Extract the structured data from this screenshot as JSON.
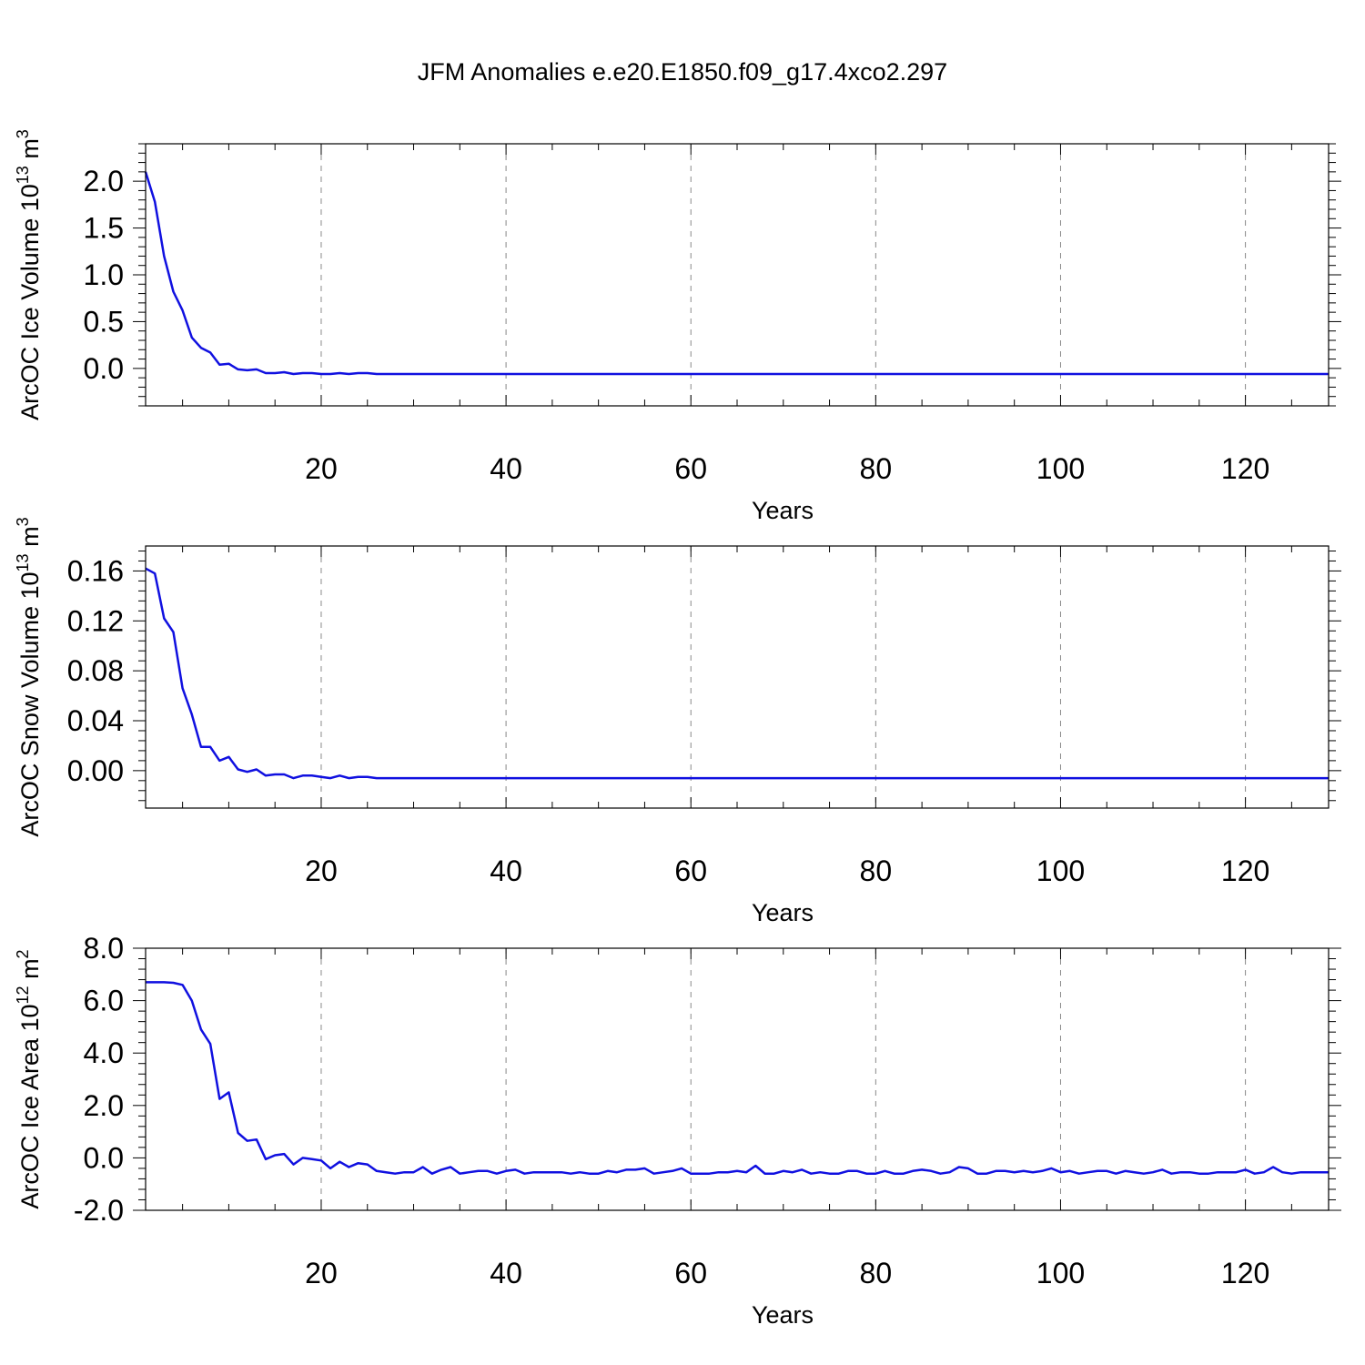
{
  "title": "JFM Anomalies e.e20.E1850.f09_g17.4xco2.297",
  "chart_data": [
    {
      "type": "line",
      "ylabel": "ArcOC Ice Volume 10",
      "ylabel_sup": "13",
      "ylabel_unit": "m",
      "ylabel_unit_sup": "3",
      "xlabel": "Years",
      "xlim": [
        1,
        129
      ],
      "ylim": [
        -0.4,
        2.4
      ],
      "xticks": [
        20,
        40,
        60,
        80,
        100,
        120
      ],
      "xtick_labels": [
        "20",
        "40",
        "60",
        "80",
        "100",
        "120"
      ],
      "yticks": [
        0.0,
        0.5,
        1.0,
        1.5,
        2.0
      ],
      "ytick_labels": [
        "0.0",
        "0.5",
        "1.0",
        "1.5",
        "2.0"
      ],
      "grid": "vertical dashed",
      "line_color": "#1010e0",
      "values": [
        2.1,
        1.78,
        1.2,
        0.82,
        0.62,
        0.33,
        0.22,
        0.17,
        0.04,
        0.05,
        -0.01,
        -0.02,
        -0.01,
        -0.05,
        -0.05,
        -0.04,
        -0.06,
        -0.05,
        -0.05,
        -0.06,
        -0.06,
        -0.05,
        -0.06,
        -0.05,
        -0.05,
        -0.06,
        -0.06,
        -0.06,
        -0.06,
        -0.06,
        -0.06,
        -0.06,
        -0.06,
        -0.06,
        -0.06,
        -0.06,
        -0.06,
        -0.06,
        -0.06,
        -0.06,
        -0.06,
        -0.06,
        -0.06,
        -0.06,
        -0.06,
        -0.06,
        -0.06,
        -0.06,
        -0.06,
        -0.06,
        -0.06,
        -0.06,
        -0.06,
        -0.06,
        -0.06,
        -0.06,
        -0.06,
        -0.06,
        -0.06,
        -0.06,
        -0.06,
        -0.06,
        -0.06,
        -0.06,
        -0.06,
        -0.06,
        -0.06,
        -0.06,
        -0.06,
        -0.06,
        -0.06,
        -0.06,
        -0.06,
        -0.06,
        -0.06,
        -0.06,
        -0.06,
        -0.06,
        -0.06,
        -0.06,
        -0.06,
        -0.06,
        -0.06,
        -0.06,
        -0.06,
        -0.06,
        -0.06,
        -0.06,
        -0.06,
        -0.06,
        -0.06,
        -0.06,
        -0.06,
        -0.06,
        -0.06,
        -0.06,
        -0.06,
        -0.06,
        -0.06,
        -0.06,
        -0.06,
        -0.06,
        -0.06,
        -0.06,
        -0.06,
        -0.06,
        -0.06,
        -0.06,
        -0.06,
        -0.06,
        -0.06,
        -0.06,
        -0.06,
        -0.06,
        -0.06,
        -0.06,
        -0.06,
        -0.06,
        -0.06,
        -0.06,
        -0.06,
        -0.06,
        -0.06,
        -0.06,
        -0.06,
        -0.06,
        -0.06,
        -0.06,
        -0.06
      ]
    },
    {
      "type": "line",
      "ylabel": "ArcOC Snow Volume 10",
      "ylabel_sup": "13",
      "ylabel_unit": "m",
      "ylabel_unit_sup": "3",
      "xlabel": "Years",
      "xlim": [
        1,
        129
      ],
      "ylim": [
        -0.03,
        0.18
      ],
      "xticks": [
        20,
        40,
        60,
        80,
        100,
        120
      ],
      "xtick_labels": [
        "20",
        "40",
        "60",
        "80",
        "100",
        "120"
      ],
      "yticks": [
        0.0,
        0.04,
        0.08,
        0.12,
        0.16
      ],
      "ytick_labels": [
        "0.00",
        "0.04",
        "0.08",
        "0.12",
        "0.16"
      ],
      "grid": "vertical dashed",
      "line_color": "#1010e0",
      "values": [
        0.162,
        0.158,
        0.122,
        0.111,
        0.066,
        0.045,
        0.019,
        0.019,
        0.008,
        0.011,
        0.001,
        -0.001,
        0.001,
        -0.004,
        -0.003,
        -0.003,
        -0.006,
        -0.004,
        -0.004,
        -0.005,
        -0.006,
        -0.004,
        -0.006,
        -0.005,
        -0.005,
        -0.006,
        -0.006,
        -0.006,
        -0.006,
        -0.006,
        -0.006,
        -0.006,
        -0.006,
        -0.006,
        -0.006,
        -0.006,
        -0.006,
        -0.006,
        -0.006,
        -0.006,
        -0.006,
        -0.006,
        -0.006,
        -0.006,
        -0.006,
        -0.006,
        -0.006,
        -0.006,
        -0.006,
        -0.006,
        -0.006,
        -0.006,
        -0.006,
        -0.006,
        -0.006,
        -0.006,
        -0.006,
        -0.006,
        -0.006,
        -0.006,
        -0.006,
        -0.006,
        -0.006,
        -0.006,
        -0.006,
        -0.006,
        -0.006,
        -0.006,
        -0.006,
        -0.006,
        -0.006,
        -0.006,
        -0.006,
        -0.006,
        -0.006,
        -0.006,
        -0.006,
        -0.006,
        -0.006,
        -0.006,
        -0.006,
        -0.006,
        -0.006,
        -0.006,
        -0.006,
        -0.006,
        -0.006,
        -0.006,
        -0.006,
        -0.006,
        -0.006,
        -0.006,
        -0.006,
        -0.006,
        -0.006,
        -0.006,
        -0.006,
        -0.006,
        -0.006,
        -0.006,
        -0.006,
        -0.006,
        -0.006,
        -0.006,
        -0.006,
        -0.006,
        -0.006,
        -0.006,
        -0.006,
        -0.006,
        -0.006,
        -0.006,
        -0.006,
        -0.006,
        -0.006,
        -0.006,
        -0.006,
        -0.006,
        -0.006,
        -0.006,
        -0.006,
        -0.006,
        -0.006,
        -0.006,
        -0.006,
        -0.006,
        -0.006,
        -0.006,
        -0.006
      ]
    },
    {
      "type": "line",
      "ylabel": "ArcOC Ice Area 10",
      "ylabel_sup": "12",
      "ylabel_unit": "m",
      "ylabel_unit_sup": "2",
      "xlabel": "Years",
      "xlim": [
        1,
        129
      ],
      "ylim": [
        -2.0,
        8.0
      ],
      "xticks": [
        20,
        40,
        60,
        80,
        100,
        120
      ],
      "xtick_labels": [
        "20",
        "40",
        "60",
        "80",
        "100",
        "120"
      ],
      "yticks": [
        -2.0,
        0.0,
        2.0,
        4.0,
        6.0,
        8.0
      ],
      "ytick_labels": [
        "-2.0",
        "0.0",
        "2.0",
        "4.0",
        "6.0",
        "8.0"
      ],
      "grid": "vertical dashed",
      "line_color": "#1010e0",
      "values": [
        6.7,
        6.7,
        6.7,
        6.68,
        6.6,
        6.0,
        4.9,
        4.35,
        2.25,
        2.5,
        0.95,
        0.65,
        0.7,
        -0.05,
        0.1,
        0.15,
        -0.25,
        0.0,
        -0.05,
        -0.1,
        -0.4,
        -0.15,
        -0.35,
        -0.2,
        -0.25,
        -0.5,
        -0.55,
        -0.6,
        -0.55,
        -0.55,
        -0.35,
        -0.6,
        -0.45,
        -0.35,
        -0.6,
        -0.55,
        -0.5,
        -0.5,
        -0.6,
        -0.5,
        -0.45,
        -0.6,
        -0.55,
        -0.55,
        -0.55,
        -0.55,
        -0.6,
        -0.55,
        -0.6,
        -0.6,
        -0.5,
        -0.55,
        -0.45,
        -0.45,
        -0.4,
        -0.6,
        -0.55,
        -0.5,
        -0.4,
        -0.6,
        -0.6,
        -0.6,
        -0.55,
        -0.55,
        -0.5,
        -0.55,
        -0.3,
        -0.6,
        -0.6,
        -0.5,
        -0.55,
        -0.45,
        -0.6,
        -0.55,
        -0.6,
        -0.6,
        -0.5,
        -0.5,
        -0.6,
        -0.6,
        -0.5,
        -0.6,
        -0.6,
        -0.5,
        -0.45,
        -0.5,
        -0.6,
        -0.55,
        -0.35,
        -0.4,
        -0.6,
        -0.6,
        -0.5,
        -0.5,
        -0.55,
        -0.5,
        -0.55,
        -0.5,
        -0.4,
        -0.55,
        -0.5,
        -0.6,
        -0.55,
        -0.5,
        -0.5,
        -0.6,
        -0.5,
        -0.55,
        -0.6,
        -0.55,
        -0.45,
        -0.6,
        -0.55,
        -0.55,
        -0.6,
        -0.6,
        -0.55,
        -0.55,
        -0.55,
        -0.45,
        -0.6,
        -0.55,
        -0.35,
        -0.55,
        -0.6,
        -0.55,
        -0.55,
        -0.55,
        -0.55
      ]
    }
  ]
}
